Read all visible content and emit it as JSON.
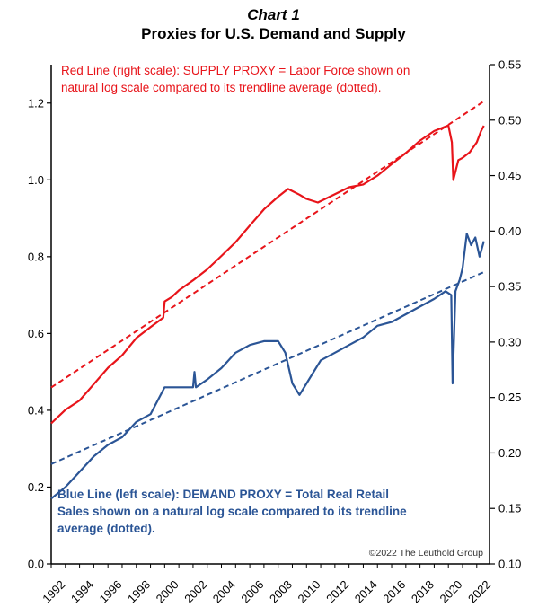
{
  "chart_data": {
    "type": "line",
    "title": "Chart 1",
    "subtitle": "Proxies for U.S. Demand and Supply",
    "xlabel": "",
    "xlim": [
      1992,
      2022.9
    ],
    "x_ticks": [
      "1992",
      "1994",
      "1996",
      "1998",
      "2000",
      "2002",
      "2004",
      "2006",
      "2008",
      "2010",
      "2012",
      "2014",
      "2016",
      "2018",
      "2020",
      "2022"
    ],
    "left_axis": {
      "ylim": [
        0.0,
        1.3
      ],
      "ticks": [
        "0.0",
        "0.2",
        "0.4",
        "0.6",
        "0.8",
        "1.0",
        "1.2"
      ]
    },
    "right_axis": {
      "ylim": [
        0.1,
        0.55
      ],
      "ticks": [
        "0.10",
        "0.15",
        "0.20",
        "0.25",
        "0.30",
        "0.35",
        "0.40",
        "0.45",
        "0.50",
        "0.55"
      ]
    },
    "grid": false,
    "colors": {
      "supply": "#e8141a",
      "demand": "#2b5596"
    },
    "annotations": {
      "supply_note": [
        "Red Line (right scale): SUPPLY PROXY = Labor Force shown on",
        "natural log scale compared to its trendline average (dotted)."
      ],
      "demand_note": [
        "Blue Line (left scale):  DEMAND PROXY = Total Real Retail",
        "Sales shown on a natural log scale compared to its trendline",
        "average (dotted)."
      ],
      "copyright": "©2022 The Leuthold Group"
    },
    "series": [
      {
        "axis": "right",
        "style": "solid",
        "color": "#e8141a",
        "x": [
          1992.0,
          1993.0,
          1994.0,
          1995.0,
          1996.0,
          1997.0,
          1998.0,
          1999.0,
          1999.9,
          2000.0,
          2000.5,
          2001.0,
          2002.0,
          2003.0,
          2004.0,
          2005.0,
          2006.0,
          2007.0,
          2008.0,
          2008.7,
          2009.5,
          2010.0,
          2010.8,
          2012.0,
          2013.0,
          2014.0,
          2015.0,
          2016.0,
          2017.0,
          2018.0,
          2019.0,
          2020.0,
          2020.25,
          2020.35,
          2020.7,
          2021.0,
          2021.5,
          2022.0,
          2022.3,
          2022.5
        ],
        "y": [
          0.2267,
          0.2389,
          0.2473,
          0.262,
          0.2768,
          0.288,
          0.3036,
          0.3134,
          0.322,
          0.3366,
          0.3405,
          0.3465,
          0.3556,
          0.3655,
          0.3776,
          0.39,
          0.405,
          0.4196,
          0.431,
          0.438,
          0.4328,
          0.429,
          0.4258,
          0.4333,
          0.4395,
          0.442,
          0.45,
          0.4603,
          0.4703,
          0.4815,
          0.4902,
          0.4952,
          0.48,
          0.446,
          0.464,
          0.466,
          0.471,
          0.48,
          0.49,
          0.495
        ]
      },
      {
        "axis": "right",
        "style": "dotted",
        "color": "#e8141a",
        "x": [
          1992.0,
          2022.5
        ],
        "y": [
          0.259,
          0.517
        ]
      },
      {
        "axis": "left",
        "style": "solid",
        "color": "#2b5596",
        "x": [
          1992.0,
          1993.0,
          1994.0,
          1995.0,
          1996.0,
          1997.0,
          1998.0,
          1999.0,
          2000.0,
          2001.0,
          2002.0,
          2002.1,
          2002.2,
          2003.0,
          2004.0,
          2005.0,
          2006.0,
          2007.0,
          2008.0,
          2008.5,
          2009.0,
          2009.5,
          2010.0,
          2011.0,
          2012.0,
          2013.0,
          2014.0,
          2015.0,
          2016.0,
          2017.0,
          2018.0,
          2019.0,
          2019.8,
          2020.2,
          2020.3,
          2020.5,
          2020.8,
          2021.0,
          2021.3,
          2021.6,
          2021.9,
          2022.2,
          2022.5
        ],
        "y": [
          0.17,
          0.2,
          0.24,
          0.28,
          0.31,
          0.33,
          0.37,
          0.39,
          0.46,
          0.46,
          0.46,
          0.5,
          0.46,
          0.48,
          0.51,
          0.55,
          0.57,
          0.58,
          0.58,
          0.55,
          0.47,
          0.44,
          0.47,
          0.53,
          0.55,
          0.57,
          0.59,
          0.62,
          0.63,
          0.65,
          0.67,
          0.69,
          0.71,
          0.7,
          0.47,
          0.71,
          0.74,
          0.77,
          0.86,
          0.83,
          0.85,
          0.8,
          0.84
        ]
      },
      {
        "axis": "left",
        "style": "dotted",
        "color": "#2b5596",
        "x": [
          1992.0,
          2022.5
        ],
        "y": [
          0.26,
          0.76
        ]
      }
    ]
  }
}
